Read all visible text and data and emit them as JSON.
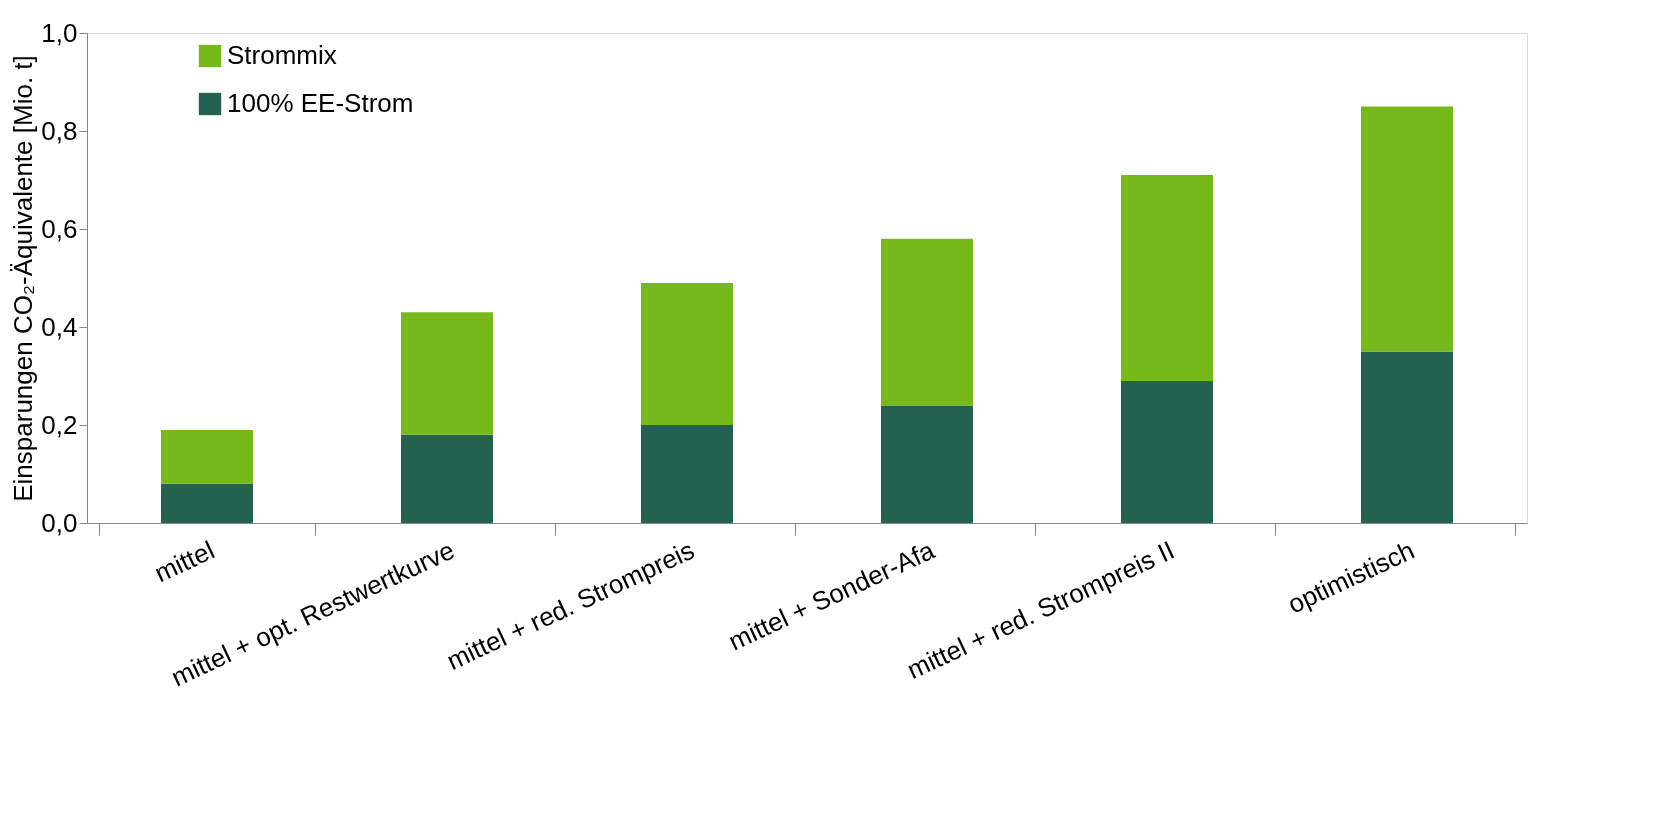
{
  "chart_data": {
    "type": "bar",
    "stacked": true,
    "ylabel": "Einsparungen CO₂-Äquivalente [Mio. t]",
    "categories": [
      "mittel",
      "mittel + opt. Restwertkurve",
      "mittel + red. Strompreis",
      "mittel + Sonder-Afa",
      "mittel + red. Strompreis II",
      "optimistisch"
    ],
    "series": [
      {
        "name": "100% EE-Strom",
        "color": "#236250",
        "values": [
          0.08,
          0.18,
          0.2,
          0.24,
          0.29,
          0.35
        ]
      },
      {
        "name": "Strommix",
        "color": "#77b91a",
        "values": [
          0.11,
          0.25,
          0.29,
          0.34,
          0.42,
          0.5
        ]
      }
    ],
    "ylim": [
      0,
      1
    ],
    "yticks": [
      {
        "value": 0,
        "label": "0,0"
      },
      {
        "value": 0.2,
        "label": "0,2"
      },
      {
        "value": 0.4,
        "label": "0,4"
      },
      {
        "value": 0.6,
        "label": "0,6"
      },
      {
        "value": 0.8,
        "label": "0,8"
      },
      {
        "value": 1,
        "label": "1,0"
      }
    ],
    "grid": false,
    "legend": "top left"
  }
}
